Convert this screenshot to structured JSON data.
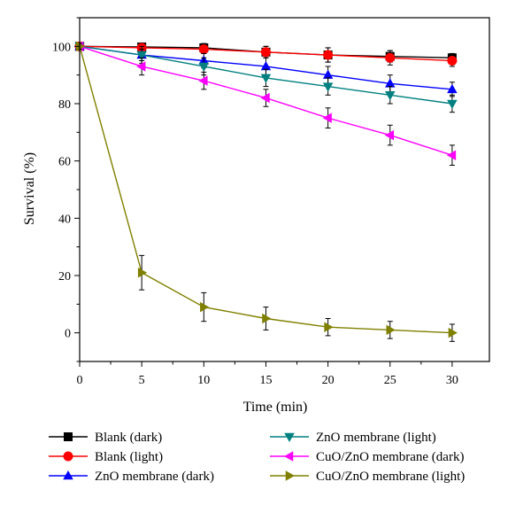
{
  "chart_data": {
    "type": "line",
    "xlabel": "Time (min)",
    "ylabel": "Survival (%)",
    "xlim": [
      0,
      33
    ],
    "ylim": [
      -10,
      110
    ],
    "xticks": [
      0,
      5,
      10,
      15,
      20,
      25,
      30
    ],
    "yticks": [
      0,
      20,
      40,
      60,
      80,
      100
    ],
    "x": [
      0,
      5,
      10,
      15,
      20,
      25,
      30
    ],
    "legend_position": "bottom",
    "series": [
      {
        "name": "Blank (dark)",
        "color": "#000000",
        "marker": "square",
        "values": [
          100,
          99.8,
          99.5,
          98,
          97,
          96.5,
          96
        ],
        "errors": [
          1,
          1,
          1.5,
          2,
          2.5,
          2,
          1.5
        ]
      },
      {
        "name": "Blank (light)",
        "color": "#ff0000",
        "marker": "circle",
        "values": [
          100,
          99.5,
          99,
          98,
          97,
          96,
          95
        ],
        "errors": [
          1,
          1,
          1.5,
          2,
          2.5,
          2.5,
          2
        ]
      },
      {
        "name": "ZnO membrane (dark)",
        "color": "#0000ff",
        "marker": "triangle-up",
        "values": [
          100,
          97,
          95,
          93,
          90,
          87,
          85
        ],
        "errors": [
          1,
          2,
          2.5,
          3,
          3,
          3,
          2.5
        ]
      },
      {
        "name": "ZnO membrane (light)",
        "color": "#008080",
        "marker": "triangle-down",
        "values": [
          100,
          97,
          93,
          89,
          86,
          83,
          80
        ],
        "errors": [
          1,
          3,
          3,
          3,
          3,
          3,
          3
        ]
      },
      {
        "name": "CuO/ZnO membrane (dark)",
        "color": "#ff00ff",
        "marker": "triangle-left",
        "values": [
          100,
          93,
          88,
          82,
          75,
          69,
          62
        ],
        "errors": [
          1,
          3,
          3,
          3,
          3.5,
          3.5,
          3.5
        ]
      },
      {
        "name": "CuO/ZnO membrane (light)",
        "color": "#808000",
        "marker": "triangle-right",
        "values": [
          100,
          21,
          9,
          5,
          2,
          1,
          0
        ],
        "errors": [
          1,
          6,
          5,
          4,
          3,
          3,
          3
        ]
      }
    ]
  }
}
